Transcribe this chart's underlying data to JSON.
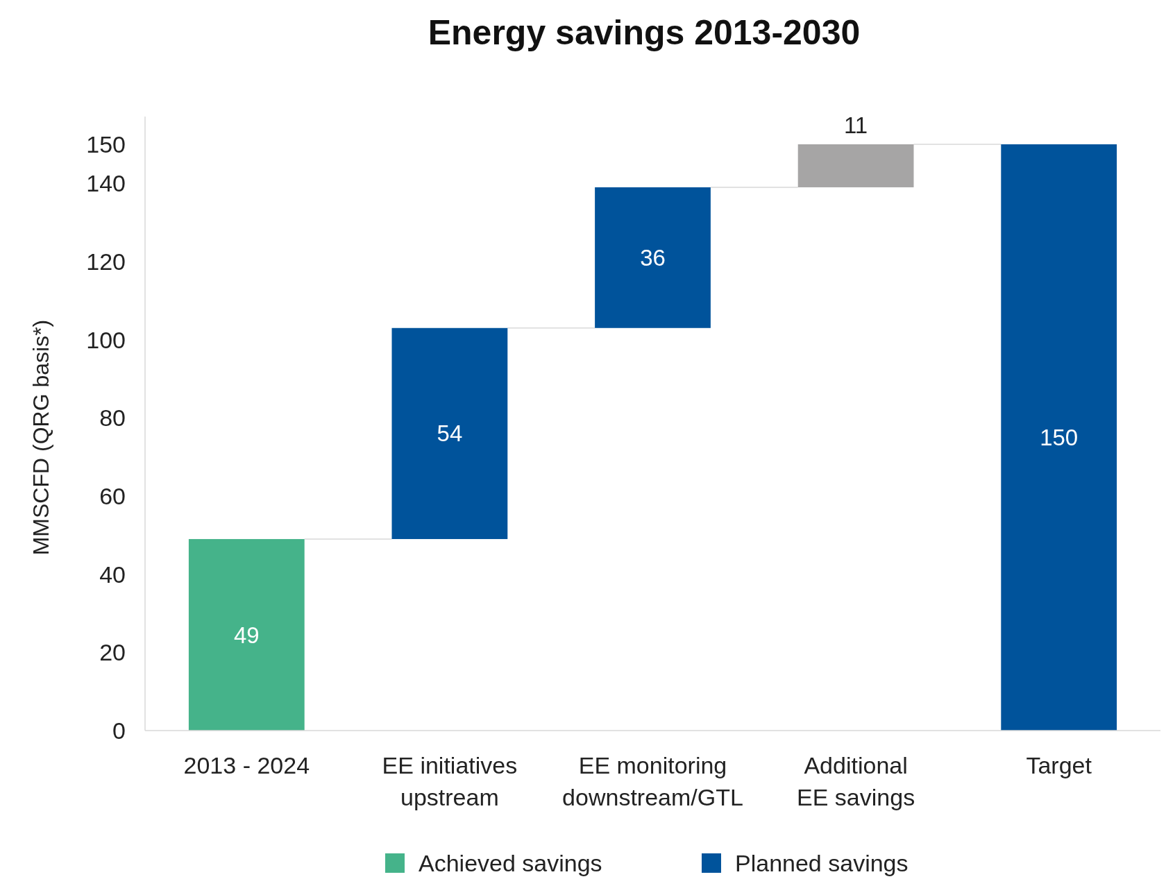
{
  "chart_data": {
    "type": "bar",
    "title": "Energy savings 2013-2030",
    "ylabel": "MMSCFD (QRG basis*)",
    "categories": [
      "2013 - 2024",
      "EE initiatives\nupstream",
      "EE monitoring\ndownstream/GTL",
      "Additional\nEE savings",
      "Target"
    ],
    "series": [
      {
        "name": "Achieved savings",
        "color": "#45b38a",
        "values": [
          49,
          null,
          null,
          null,
          null
        ],
        "base": [
          0,
          null,
          null,
          null,
          null
        ]
      },
      {
        "name": "Planned savings",
        "color": "#00539b",
        "values": [
          null,
          54,
          36,
          null,
          150
        ],
        "base": [
          null,
          49,
          103,
          null,
          0
        ]
      },
      {
        "color": "#a6a5a5",
        "values": [
          null,
          null,
          null,
          11,
          null
        ],
        "base": [
          null,
          null,
          null,
          139,
          null
        ]
      }
    ],
    "ylim": [
      0,
      150
    ],
    "yticks": [
      0,
      20,
      40,
      60,
      80,
      100,
      120,
      140,
      150
    ],
    "data_labels": true,
    "legend": "bottom",
    "grid": false
  }
}
